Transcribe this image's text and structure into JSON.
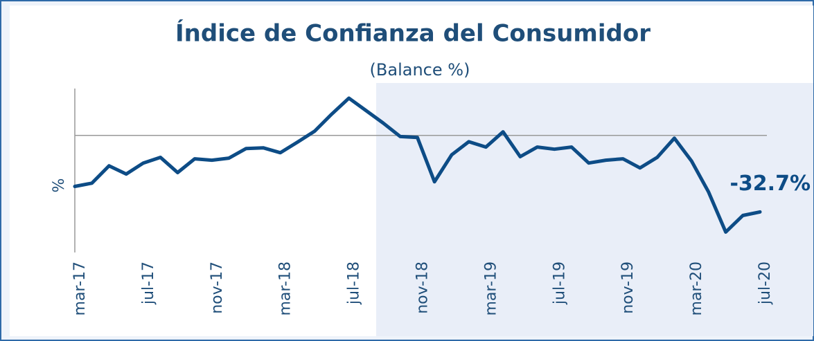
{
  "chart_data": {
    "type": "line",
    "title": "Índice de Confianza del Consumidor",
    "subtitle": "(Balance %)",
    "y_label": "%",
    "categories": [
      "mar-17",
      null,
      null,
      null,
      "jul-17",
      null,
      null,
      null,
      "nov-17",
      null,
      null,
      null,
      "mar-18",
      null,
      null,
      null,
      "jul-18",
      null,
      null,
      null,
      "nov-18",
      null,
      null,
      null,
      "mar-19",
      null,
      null,
      null,
      "jul-19",
      null,
      null,
      null,
      "nov-19",
      null,
      null,
      null,
      "mar-20",
      null,
      null,
      null,
      "jul-20"
    ],
    "values": [
      -21.8,
      -20.4,
      -13,
      -16.5,
      -11.8,
      -9.4,
      -15.9,
      -10,
      -10.6,
      -9.7,
      -5.6,
      -5.3,
      -7.4,
      -2.9,
      1.8,
      9.1,
      15.9,
      10.6,
      5.3,
      -0.5,
      -0.9,
      -19.8,
      -8.3,
      -2.7,
      -5,
      1.5,
      -9.1,
      -5,
      -5.9,
      -5,
      -11.8,
      -10.6,
      -10,
      -13.9,
      -9.4,
      -1.2,
      -10.9,
      -24.2,
      -41.3,
      -34.2,
      -32.7
    ],
    "value_labels": [
      null,
      null,
      null,
      null,
      null,
      null,
      null,
      null,
      null,
      null,
      null,
      null,
      null,
      null,
      null,
      null,
      null,
      null,
      null,
      null,
      null,
      null,
      null,
      null,
      null,
      null,
      null,
      null,
      null,
      null,
      null,
      null,
      null,
      null,
      null,
      null,
      null,
      null,
      null,
      null,
      "-32.7%"
    ],
    "color": "#0d4c86",
    "ylim": [
      -50,
      20
    ],
    "reference_line": 0
  }
}
